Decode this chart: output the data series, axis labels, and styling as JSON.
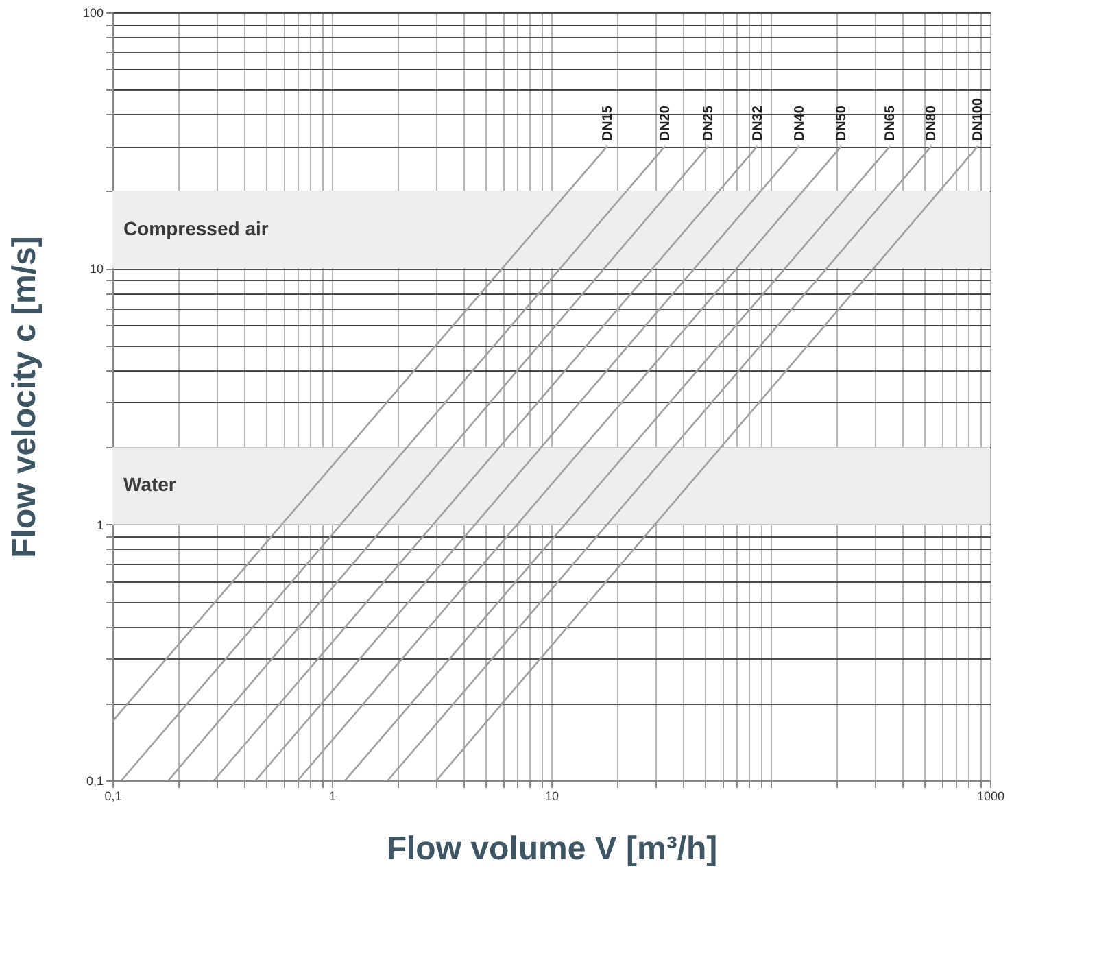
{
  "chart_data": {
    "type": "line",
    "xlabel": "Flow volume V [m³/h]",
    "ylabel": "Flow velocity c [m/s]",
    "log": "xy",
    "grid": true,
    "line_style": "solid",
    "marker": "none",
    "legend": false,
    "xlim": [
      0.1,
      1000
    ],
    "ylim": [
      0.1,
      100
    ],
    "xticks": [
      {
        "value": 0.1,
        "label": "0,1"
      },
      {
        "value": 0.2,
        "label": null
      },
      {
        "value": 0.3,
        "label": null
      },
      {
        "value": 0.4,
        "label": null
      },
      {
        "value": 0.5,
        "label": null
      },
      {
        "value": 0.6,
        "label": null
      },
      {
        "value": 0.7,
        "label": null
      },
      {
        "value": 0.8,
        "label": null
      },
      {
        "value": 0.9,
        "label": null
      },
      1,
      {
        "value": 2,
        "label": null
      },
      {
        "value": 3,
        "label": null
      },
      {
        "value": 4,
        "label": null
      },
      {
        "value": 5,
        "label": null
      },
      {
        "value": 6,
        "label": null
      },
      {
        "value": 7,
        "label": null
      },
      {
        "value": 8,
        "label": null
      },
      {
        "value": 9,
        "label": null
      },
      10,
      {
        "value": 20,
        "label": null
      },
      {
        "value": 30,
        "label": null
      },
      {
        "value": 40,
        "label": null
      },
      {
        "value": 50,
        "label": null
      },
      {
        "value": 60,
        "label": null
      },
      {
        "value": 70,
        "label": null
      },
      {
        "value": 80,
        "label": null
      },
      {
        "value": 90,
        "label": null
      },
      {
        "value": 100,
        "label": null
      },
      {
        "value": 200,
        "label": null
      },
      {
        "value": 300,
        "label": null
      },
      {
        "value": 400,
        "label": null
      },
      {
        "value": 500,
        "label": null
      },
      {
        "value": 600,
        "label": null
      },
      {
        "value": 700,
        "label": null
      },
      {
        "value": 800,
        "label": null
      },
      {
        "value": 900,
        "label": null
      },
      1000
    ],
    "yticks": [
      {
        "value": 0.1,
        "label": "0,1"
      },
      {
        "value": 0.2,
        "label": null
      },
      {
        "value": 0.3,
        "label": null
      },
      {
        "value": 0.4,
        "label": null
      },
      {
        "value": 0.5,
        "label": null
      },
      {
        "value": 0.6,
        "label": null
      },
      {
        "value": 0.7,
        "label": null
      },
      {
        "value": 0.8,
        "label": null
      },
      {
        "value": 0.9,
        "label": null
      },
      1,
      {
        "value": 2,
        "label": null
      },
      {
        "value": 3,
        "label": null
      },
      {
        "value": 4,
        "label": null
      },
      {
        "value": 5,
        "label": null
      },
      {
        "value": 6,
        "label": null
      },
      {
        "value": 7,
        "label": null
      },
      {
        "value": 8,
        "label": null
      },
      {
        "value": 9,
        "label": null
      },
      10,
      {
        "value": 20,
        "label": null
      },
      {
        "value": 30,
        "label": null
      },
      {
        "value": 40,
        "label": null
      },
      {
        "value": 50,
        "label": null
      },
      {
        "value": 60,
        "label": null
      },
      {
        "value": 70,
        "label": null
      },
      {
        "value": 80,
        "label": null
      },
      {
        "value": 90,
        "label": null
      },
      100
    ],
    "bands": [
      {
        "axis": "y",
        "from": 10,
        "to": 20,
        "label": "Compressed air",
        "color": "#eeeeee"
      },
      {
        "axis": "y",
        "from": 1,
        "to": 2,
        "label": "Water",
        "color": "#eeeeee"
      }
    ],
    "series": [
      {
        "name": "DN15",
        "color": "#a0a0a0",
        "x": [
          0.1,
          18
        ],
        "values": [
          0.17,
          30
        ]
      },
      {
        "name": "DN20",
        "color": "#a0a0a0",
        "x": [
          0.11,
          33
        ],
        "values": [
          0.1,
          30
        ]
      },
      {
        "name": "DN25",
        "color": "#a0a0a0",
        "x": [
          0.18,
          52
        ],
        "values": [
          0.1,
          30
        ]
      },
      {
        "name": "DN32",
        "color": "#a0a0a0",
        "x": [
          0.29,
          87
        ],
        "values": [
          0.1,
          30
        ]
      },
      {
        "name": "DN40",
        "color": "#a0a0a0",
        "x": [
          0.45,
          135
        ],
        "values": [
          0.1,
          30
        ]
      },
      {
        "name": "DN50",
        "color": "#a0a0a0",
        "x": [
          0.7,
          210
        ],
        "values": [
          0.1,
          30
        ]
      },
      {
        "name": "DN65",
        "color": "#a0a0a0",
        "x": [
          1.15,
          350
        ],
        "values": [
          0.1,
          30
        ]
      },
      {
        "name": "DN80",
        "color": "#a0a0a0",
        "x": [
          1.8,
          540
        ],
        "values": [
          0.1,
          30
        ]
      },
      {
        "name": "DN100",
        "color": "#a0a0a0",
        "x": [
          3.0,
          880
        ],
        "values": [
          0.1,
          30
        ]
      }
    ]
  }
}
